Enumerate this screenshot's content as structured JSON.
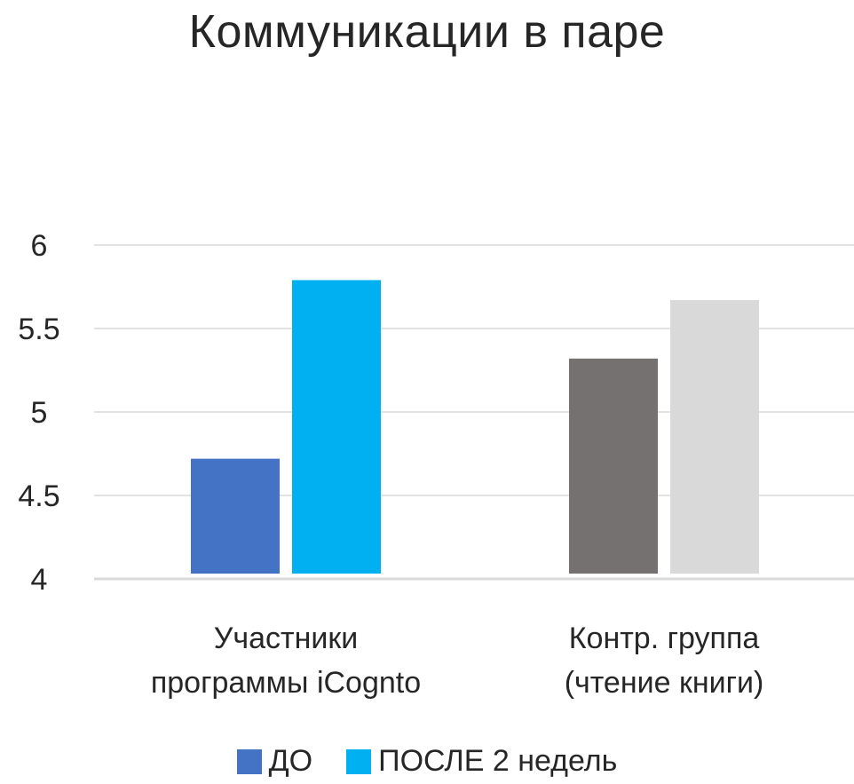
{
  "chart_data": {
    "type": "bar",
    "title": "Коммуникации в паре",
    "categories": [
      "Участники программы iCognto",
      "Контр. группа (чтение книги)"
    ],
    "category_lines": [
      [
        "Участники",
        "программы iCognto"
      ],
      [
        "Контр. группа",
        "(чтение книги)"
      ]
    ],
    "series": [
      {
        "name": "ДО",
        "values": [
          4.72,
          5.32
        ],
        "colors": [
          "#4472C4",
          "#767171"
        ]
      },
      {
        "name": "ПОСЛЕ 2 недель",
        "values": [
          5.79,
          5.67
        ],
        "colors": [
          "#00B0F0",
          "#D9D9D9"
        ]
      }
    ],
    "yticks": [
      4,
      4.5,
      5,
      5.5,
      6
    ],
    "ytick_labels": [
      "4",
      "4.5",
      "5",
      "5.5",
      "6"
    ],
    "ylim": [
      4,
      6
    ],
    "grid": true,
    "legend_position": "bottom"
  },
  "legend": [
    {
      "label": "ДО",
      "color": "#4472C4"
    },
    {
      "label": "ПОСЛЕ 2 недель",
      "color": "#00B0F0"
    }
  ],
  "colors": {
    "grid": "#d9d9d9",
    "axis": "#d9d9d9",
    "text": "#262626"
  }
}
